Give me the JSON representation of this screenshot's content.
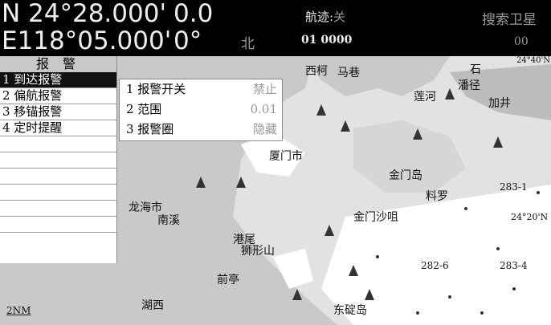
{
  "status_bar": {
    "lat": "N  24°28.000'",
    "lon": "E118°05.000'",
    "speed": "0.0",
    "course": "0°",
    "heading_mode": "北",
    "track_label": "航迹:",
    "track_state": "关",
    "track_number": "01 0000",
    "gps_status": "搜索卫星",
    "satellites": "00"
  },
  "menu": {
    "title": "报 警",
    "items": [
      "1 到达报警",
      "2 偏航报警",
      "3 移锚报警",
      "4 定时提醒"
    ]
  },
  "submenu": {
    "rows": [
      {
        "label": "1 报警开关",
        "value": "禁止"
      },
      {
        "label": "2 范围",
        "value": "0.01"
      },
      {
        "label": "3 报警圈",
        "value": "隐藏"
      }
    ]
  },
  "map": {
    "labels": [
      "西柯",
      "马巷",
      "莲河",
      "潘径",
      "石",
      "加井",
      "厦门市",
      "金门岛",
      "料罗",
      "龙海市",
      "南溪",
      "金门沙咀",
      "港尾",
      "狮形山",
      "湖西",
      "前亭",
      "东碇岛",
      "283-1",
      "283-4",
      "282-6",
      "24°20'N",
      "24°40'N",
      "2NM"
    ]
  }
}
